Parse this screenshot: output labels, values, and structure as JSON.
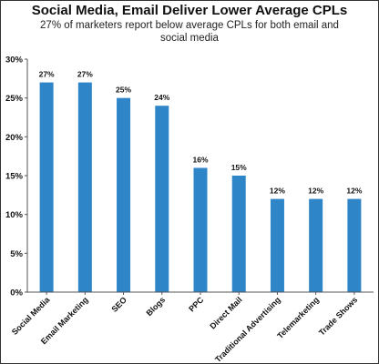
{
  "chart_data": {
    "type": "bar",
    "title": "Social Media, Email Deliver Lower Average CPLs",
    "subtitle": "27% of marketers report below average CPLs for both email and social media",
    "xlabel": "",
    "ylabel": "",
    "categories": [
      "Social Media",
      "Email Marketing",
      "SEO",
      "Blogs",
      "PPC",
      "Direct Mail",
      "Traditional Advertising",
      "Telemarketing",
      "Trade Shows"
    ],
    "values": [
      27,
      27,
      25,
      24,
      16,
      15,
      12,
      12,
      12
    ],
    "data_labels": [
      "27%",
      "27%",
      "25%",
      "24%",
      "16%",
      "15%",
      "12%",
      "12%",
      "12%"
    ],
    "ylim": [
      0,
      30
    ],
    "yticks": [
      0,
      5,
      10,
      15,
      20,
      25,
      30
    ],
    "ytick_labels": [
      "0%",
      "5%",
      "10%",
      "15%",
      "20%",
      "25%",
      "30%"
    ],
    "grid": false,
    "legend": "none",
    "bar_color": "#2e86c8"
  }
}
